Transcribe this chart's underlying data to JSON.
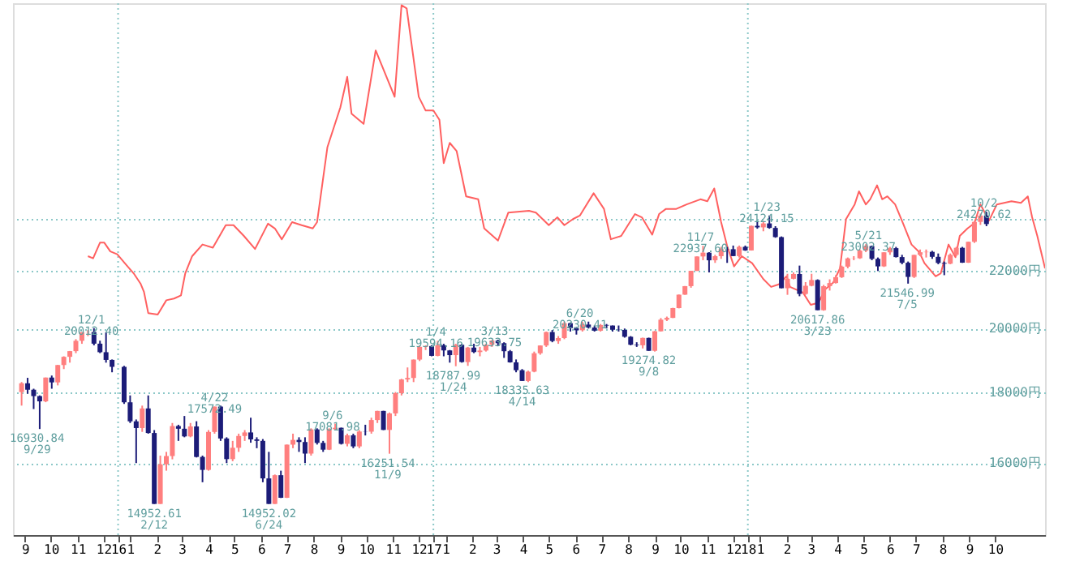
{
  "chart_data": {
    "type": "candlestick",
    "log": true,
    "grid": "y",
    "xlim": [
      "2015-09-01",
      "2018-12-12"
    ],
    "ylim": [
      14200,
      34300
    ],
    "yticks": [
      {
        "value": 16000,
        "label": "16000円"
      },
      {
        "value": 18000,
        "label": "18000円"
      },
      {
        "value": 20000,
        "label": "20000円"
      },
      {
        "value": 22000,
        "label": "22000円"
      },
      {
        "value": 24000,
        "label": null
      }
    ],
    "xticks": [
      {
        "value": "2015-09-15",
        "label": "9"
      },
      {
        "value": "2015-10-15",
        "label": "10"
      },
      {
        "value": "2015-11-15",
        "label": "11"
      },
      {
        "value": "2015-12-15",
        "label": "12"
      },
      {
        "value": "2016-01-01",
        "label": "16"
      },
      {
        "value": "2016-01-15",
        "label": "1"
      },
      {
        "value": "2016-02-15",
        "label": "2"
      },
      {
        "value": "2016-03-15",
        "label": "3"
      },
      {
        "value": "2016-04-15",
        "label": "4"
      },
      {
        "value": "2016-05-15",
        "label": "5"
      },
      {
        "value": "2016-06-15",
        "label": "6"
      },
      {
        "value": "2016-07-15",
        "label": "7"
      },
      {
        "value": "2016-08-15",
        "label": "8"
      },
      {
        "value": "2016-09-15",
        "label": "9"
      },
      {
        "value": "2016-10-15",
        "label": "10"
      },
      {
        "value": "2016-11-15",
        "label": "11"
      },
      {
        "value": "2016-12-15",
        "label": "12"
      },
      {
        "value": "2017-01-01",
        "label": "17"
      },
      {
        "value": "2017-01-15",
        "label": "1"
      },
      {
        "value": "2017-02-15",
        "label": "2"
      },
      {
        "value": "2017-03-15",
        "label": "3"
      },
      {
        "value": "2017-04-15",
        "label": "4"
      },
      {
        "value": "2017-05-15",
        "label": "5"
      },
      {
        "value": "2017-06-15",
        "label": "6"
      },
      {
        "value": "2017-07-15",
        "label": "7"
      },
      {
        "value": "2017-08-15",
        "label": "8"
      },
      {
        "value": "2017-09-15",
        "label": "9"
      },
      {
        "value": "2017-10-15",
        "label": "10"
      },
      {
        "value": "2017-11-15",
        "label": "11"
      },
      {
        "value": "2017-12-15",
        "label": "12"
      },
      {
        "value": "2018-01-01",
        "label": "18"
      },
      {
        "value": "2018-01-15",
        "label": "1"
      },
      {
        "value": "2018-02-15",
        "label": "2"
      },
      {
        "value": "2018-03-15",
        "label": "3"
      },
      {
        "value": "2018-04-15",
        "label": "4"
      },
      {
        "value": "2018-05-15",
        "label": "5"
      },
      {
        "value": "2018-06-15",
        "label": "6"
      },
      {
        "value": "2018-07-15",
        "label": "7"
      },
      {
        "value": "2018-08-15",
        "label": "8"
      },
      {
        "value": "2018-09-15",
        "label": "9"
      },
      {
        "value": "2018-10-15",
        "label": "10"
      }
    ],
    "ref_lines": [
      {
        "axis": "x",
        "value": "2016-01-01"
      },
      {
        "axis": "x",
        "value": "2017-01-01"
      },
      {
        "axis": "x",
        "value": "2018-01-01"
      }
    ],
    "series": [
      {
        "type": "line",
        "color": "#ff6060",
        "x": [
          "2015-11-27",
          "2015-12-03",
          "2015-12-11",
          "2015-12-16",
          "2015-12-23",
          "2015-12-31",
          "2016-01-11",
          "2016-01-19",
          "2016-01-27",
          "2016-01-31",
          "2016-02-05",
          "2016-02-16",
          "2016-02-26",
          "2016-03-06",
          "2016-03-14",
          "2016-03-19",
          "2016-03-27",
          "2016-04-08",
          "2016-04-20",
          "2016-05-05",
          "2016-05-14",
          "2016-05-26",
          "2016-06-08",
          "2016-06-23",
          "2016-07-01",
          "2016-07-09",
          "2016-07-21",
          "2016-08-01",
          "2016-08-14",
          "2016-08-19",
          "2016-08-31",
          "2016-09-15",
          "2016-09-23",
          "2016-09-28",
          "2016-10-12",
          "2016-10-26",
          "2016-11-17",
          "2016-11-25",
          "2016-12-01",
          "2016-12-15",
          "2016-12-23",
          "2017-01-01",
          "2017-01-08",
          "2017-01-13",
          "2017-01-20",
          "2017-01-28",
          "2017-02-08",
          "2017-02-22",
          "2017-03-01",
          "2017-03-17",
          "2017-03-29",
          "2017-04-22",
          "2017-04-30",
          "2017-05-15",
          "2017-05-25",
          "2017-06-02",
          "2017-06-12",
          "2017-06-20",
          "2017-07-06",
          "2017-07-18",
          "2017-07-26",
          "2017-08-07",
          "2017-08-23",
          "2017-08-31",
          "2017-09-12",
          "2017-09-20",
          "2017-09-28",
          "2017-10-10",
          "2017-10-22",
          "2017-11-07",
          "2017-11-15",
          "2017-11-23",
          "2017-12-01",
          "2017-12-08",
          "2017-12-16",
          "2017-12-25",
          "2018-01-06",
          "2018-01-19",
          "2018-01-28",
          "2018-02-06",
          "2018-02-15",
          "2018-02-19",
          "2018-03-06",
          "2018-03-15",
          "2018-03-24",
          "2018-04-01",
          "2018-04-10",
          "2018-04-18",
          "2018-04-25",
          "2018-05-05",
          "2018-05-10",
          "2018-05-18",
          "2018-05-23",
          "2018-05-31",
          "2018-06-06",
          "2018-06-12",
          "2018-06-21",
          "2018-06-30",
          "2018-07-10",
          "2018-07-19",
          "2018-07-25",
          "2018-08-07",
          "2018-08-13",
          "2018-08-22",
          "2018-08-30",
          "2018-09-04",
          "2018-09-13",
          "2018-09-21",
          "2018-09-28",
          "2018-10-08",
          "2018-10-17",
          "2018-11-03",
          "2018-11-14",
          "2018-11-22",
          "2018-11-27",
          "2018-12-03",
          "2018-12-12"
        ],
        "values": [
          22550,
          22470,
          23060,
          23060,
          22730,
          22620,
          22210,
          21920,
          21550,
          21260,
          20520,
          20470,
          20960,
          21020,
          21130,
          21920,
          22550,
          22990,
          22870,
          23740,
          23740,
          23320,
          22820,
          23800,
          23610,
          23190,
          23860,
          23740,
          23610,
          23860,
          27020,
          28860,
          30360,
          28560,
          28080,
          31720,
          29370,
          34190,
          34010,
          29370,
          28710,
          28710,
          28270,
          26310,
          27210,
          26840,
          24900,
          24780,
          23610,
          23140,
          24240,
          24310,
          24240,
          23740,
          24050,
          23740,
          23980,
          24120,
          25030,
          24390,
          23190,
          23320,
          24180,
          24050,
          23370,
          24180,
          24390,
          24390,
          24570,
          24780,
          24700,
          25230,
          23860,
          22930,
          22170,
          22550,
          22290,
          21710,
          21430,
          21520,
          21810,
          21430,
          21230,
          20800,
          20870,
          21350,
          21580,
          22100,
          23980,
          24570,
          25110,
          24570,
          24780,
          25360,
          24780,
          24900,
          24570,
          23820,
          22990,
          22700,
          22290,
          21810,
          21920,
          22990,
          22510,
          23320,
          23610,
          23820,
          24570,
          23920,
          24570,
          24700,
          24630,
          24900,
          24050,
          23320,
          22100
        ]
      },
      {
        "color": "#ff7f7f",
        "x": [
          "2015-09-11",
          "2015-10-09",
          "2015-10-23",
          "2015-10-30",
          "2015-11-06",
          "2015-11-13",
          "2015-11-20",
          "2015-11-27",
          "2016-01-29",
          "2016-02-19",
          "2016-02-26",
          "2016-03-04",
          "2016-03-25",
          "2016-04-15",
          "2016-04-22",
          "2016-05-13",
          "2016-05-20",
          "2016-05-27",
          "2016-07-01",
          "2016-07-15",
          "2016-07-22",
          "2016-08-12",
          "2016-09-02",
          "2016-09-09",
          "2016-09-23",
          "2016-10-07",
          "2016-10-21",
          "2016-10-28",
          "2016-11-11",
          "2016-11-18",
          "2016-11-25",
          "2016-12-02",
          "2016-12-09",
          "2016-12-16",
          "2016-12-23",
          "2017-01-06",
          "2017-01-27",
          "2017-02-10",
          "2017-02-24",
          "2017-03-03",
          "2017-03-10",
          "2017-04-21",
          "2017-04-28",
          "2017-05-05",
          "2017-05-12",
          "2017-05-26",
          "2017-06-02",
          "2017-06-23",
          "2017-07-14",
          "2017-09-01",
          "2017-09-15",
          "2017-09-22",
          "2017-09-29",
          "2017-10-06",
          "2017-10-13",
          "2017-10-20",
          "2017-10-27",
          "2017-11-03",
          "2017-11-10",
          "2017-11-24",
          "2017-12-01",
          "2017-12-22",
          "2018-01-05",
          "2018-01-19",
          "2018-02-16",
          "2018-02-23",
          "2018-03-09",
          "2018-03-16",
          "2018-03-30",
          "2018-04-06",
          "2018-04-13",
          "2018-04-20",
          "2018-04-27",
          "2018-05-04",
          "2018-05-11",
          "2018-05-18",
          "2018-06-08",
          "2018-06-15",
          "2018-07-13",
          "2018-07-20",
          "2018-07-27",
          "2018-08-24",
          "2018-08-31",
          "2018-09-14",
          "2018-09-21",
          "2018-09-28"
        ],
        "ohlc": [
          [
            18000,
            18300,
            17600,
            18264
          ],
          [
            17725,
            18440,
            17700,
            18438
          ],
          [
            18291,
            18830,
            18200,
            18825
          ],
          [
            18825,
            19100,
            18700,
            19083
          ],
          [
            19083,
            19270,
            18900,
            19265
          ],
          [
            19265,
            19650,
            19200,
            19597
          ],
          [
            19597,
            19880,
            19500,
            19879
          ],
          [
            19879,
            19950,
            19750,
            19883
          ],
          [
            16958,
            17600,
            16850,
            17518
          ],
          [
            14952,
            16200,
            14952,
            15967
          ],
          [
            15967,
            16300,
            15800,
            16188
          ],
          [
            16188,
            17100,
            16100,
            17014
          ],
          [
            16724,
            17100,
            16700,
            17002
          ],
          [
            15821,
            16900,
            15800,
            16848
          ],
          [
            16848,
            17572,
            16800,
            17572
          ],
          [
            16106,
            16600,
            16050,
            16412
          ],
          [
            16412,
            16800,
            16300,
            16736
          ],
          [
            16736,
            16900,
            16600,
            16834
          ],
          [
            14952,
            15700,
            14952,
            15682
          ],
          [
            15106,
            16500,
            15100,
            16497
          ],
          [
            16497,
            16800,
            16400,
            16627
          ],
          [
            16254,
            16950,
            16200,
            16919
          ],
          [
            16360,
            16950,
            16350,
            16925
          ],
          [
            16925,
            17081,
            16900,
            16965
          ],
          [
            16519,
            16800,
            16450,
            16754
          ],
          [
            16449,
            16900,
            16400,
            16860
          ],
          [
            16856,
            17250,
            16800,
            17184
          ],
          [
            17184,
            17450,
            17100,
            17446
          ],
          [
            16905,
            17400,
            16251,
            17374
          ],
          [
            17374,
            18000,
            17300,
            17967
          ],
          [
            17967,
            18400,
            17900,
            18381
          ],
          [
            18381,
            18750,
            18300,
            18426
          ],
          [
            18426,
            19000,
            18300,
            18996
          ],
          [
            18996,
            19450,
            18950,
            19401
          ],
          [
            19401,
            19450,
            19300,
            19427
          ],
          [
            19114,
            19594,
            19100,
            19454
          ],
          [
            19137,
            19500,
            18788,
            19467
          ],
          [
            18918,
            19400,
            18800,
            19378
          ],
          [
            19234,
            19400,
            19100,
            19283
          ],
          [
            19283,
            19500,
            19250,
            19469
          ],
          [
            19469,
            19620,
            19400,
            19604
          ],
          [
            18335,
            18650,
            18300,
            18620
          ],
          [
            18620,
            19250,
            18600,
            19196
          ],
          [
            19196,
            19450,
            19150,
            19445
          ],
          [
            19445,
            19900,
            19400,
            19883
          ],
          [
            19590,
            19750,
            19500,
            19686
          ],
          [
            19686,
            20230,
            19650,
            20177
          ],
          [
            19943,
            20230,
            19900,
            20132
          ],
          [
            19929,
            20150,
            19900,
            20118
          ],
          [
            19452,
            19700,
            19350,
            19691
          ],
          [
            19274,
            19920,
            19250,
            19909
          ],
          [
            19909,
            20350,
            19900,
            20296
          ],
          [
            20296,
            20400,
            20250,
            20356
          ],
          [
            20356,
            20700,
            20350,
            20690
          ],
          [
            20690,
            21160,
            20680,
            21155
          ],
          [
            21155,
            21460,
            21150,
            21457
          ],
          [
            21457,
            22010,
            21400,
            22008
          ],
          [
            22008,
            22540,
            22000,
            22539
          ],
          [
            22539,
            22937,
            22400,
            22681
          ],
          [
            22396,
            22600,
            22300,
            22550
          ],
          [
            22550,
            22900,
            22450,
            22819
          ],
          [
            22553,
            22950,
            22500,
            22902
          ],
          [
            22764,
            23720,
            22760,
            23714
          ],
          [
            23653,
            23900,
            23500,
            23808
          ],
          [
            21382,
            21900,
            21150,
            21720
          ],
          [
            21720,
            21950,
            21700,
            21892
          ],
          [
            21181,
            21600,
            21150,
            21469
          ],
          [
            21469,
            21900,
            21450,
            21676
          ],
          [
            20617,
            21500,
            20600,
            21454
          ],
          [
            21454,
            21700,
            21300,
            21567
          ],
          [
            21567,
            21850,
            21550,
            21778
          ],
          [
            21778,
            22200,
            21750,
            22162
          ],
          [
            22162,
            22500,
            22100,
            22467
          ],
          [
            22467,
            22550,
            22400,
            22472
          ],
          [
            22472,
            22800,
            22450,
            22758
          ],
          [
            22758,
            23002,
            22700,
            22930
          ],
          [
            22171,
            22700,
            22150,
            22694
          ],
          [
            22694,
            22900,
            22600,
            22851
          ],
          [
            21788,
            22600,
            21750,
            22597
          ],
          [
            22597,
            22800,
            22550,
            22697
          ],
          [
            22697,
            22800,
            22500,
            22712
          ],
          [
            22270,
            22650,
            22250,
            22601
          ],
          [
            22601,
            22900,
            22550,
            22865
          ],
          [
            22307,
            23100,
            22300,
            23094
          ],
          [
            23094,
            23900,
            23050,
            23869
          ],
          [
            23869,
            24200,
            23750,
            24120
          ]
        ]
      },
      {
        "color": "#1c1c78",
        "x": [
          "2015-09-18",
          "2015-09-25",
          "2015-10-02",
          "2015-10-16",
          "2015-12-04",
          "2015-12-11",
          "2015-12-18",
          "2015-12-25",
          "2016-01-08",
          "2016-01-15",
          "2016-01-22",
          "2016-02-05",
          "2016-02-12",
          "2016-03-11",
          "2016-03-18",
          "2016-04-01",
          "2016-04-08",
          "2016-04-29",
          "2016-05-06",
          "2016-06-03",
          "2016-06-10",
          "2016-06-17",
          "2016-06-24",
          "2016-07-08",
          "2016-07-29",
          "2016-08-05",
          "2016-08-19",
          "2016-08-26",
          "2016-09-16",
          "2016-09-30",
          "2016-10-14",
          "2016-11-04",
          "2016-12-30",
          "2017-01-13",
          "2017-01-20",
          "2017-02-03",
          "2017-02-17",
          "2017-03-17",
          "2017-03-24",
          "2017-03-31",
          "2017-04-07",
          "2017-04-14",
          "2017-05-19",
          "2017-06-09",
          "2017-06-16",
          "2017-06-30",
          "2017-07-07",
          "2017-07-21",
          "2017-07-28",
          "2017-08-04",
          "2017-08-11",
          "2017-08-18",
          "2017-08-25",
          "2017-09-08",
          "2017-11-17",
          "2017-12-08",
          "2017-12-15",
          "2017-12-29",
          "2018-01-12",
          "2018-01-26",
          "2018-02-02",
          "2018-02-09",
          "2018-03-02",
          "2018-03-23",
          "2018-05-25",
          "2018-06-01",
          "2018-06-22",
          "2018-06-29",
          "2018-07-06",
          "2018-08-03",
          "2018-08-10",
          "2018-08-17",
          "2018-09-07",
          "2018-10-05"
        ],
        "ohlc": [
          [
            18264,
            18430,
            17950,
            18070
          ],
          [
            18070,
            18100,
            17500,
            17880
          ],
          [
            17880,
            17900,
            16930,
            17725
          ],
          [
            18438,
            18500,
            18100,
            18291
          ],
          [
            19883,
            20012,
            19450,
            19504
          ],
          [
            19504,
            19600,
            19200,
            19230
          ],
          [
            19230,
            19870,
            18900,
            18986
          ],
          [
            18986,
            19000,
            18600,
            18769
          ],
          [
            18769,
            18800,
            17650,
            17697
          ],
          [
            17697,
            17900,
            17100,
            17147
          ],
          [
            17147,
            17200,
            16000,
            16958
          ],
          [
            17518,
            17900,
            16800,
            16819
          ],
          [
            16819,
            16900,
            14952,
            14952
          ],
          [
            17014,
            17050,
            16600,
            16938
          ],
          [
            16938,
            17300,
            16700,
            16724
          ],
          [
            17002,
            17150,
            16150,
            16164
          ],
          [
            16164,
            16200,
            15500,
            15821
          ],
          [
            17572,
            17600,
            16600,
            16666
          ],
          [
            16666,
            16700,
            16000,
            16106
          ],
          [
            16834,
            17250,
            16550,
            16642
          ],
          [
            16642,
            16700,
            16400,
            16601
          ],
          [
            16601,
            16650,
            15500,
            15599
          ],
          [
            15599,
            16300,
            14952,
            14952
          ],
          [
            15682,
            15800,
            15100,
            15106
          ],
          [
            16627,
            16700,
            16300,
            16569
          ],
          [
            16569,
            16700,
            16000,
            16254
          ],
          [
            16919,
            16950,
            16500,
            16545
          ],
          [
            16545,
            16600,
            16300,
            16360
          ],
          [
            16965,
            16970,
            16500,
            16519
          ],
          [
            16754,
            16800,
            16400,
            16449
          ],
          [
            16860,
            17050,
            16750,
            16856
          ],
          [
            17446,
            17450,
            16900,
            16905
          ],
          [
            19427,
            19450,
            19100,
            19114
          ],
          [
            19454,
            19500,
            19100,
            19287
          ],
          [
            19287,
            19300,
            18900,
            19137
          ],
          [
            19467,
            19500,
            18900,
            18918
          ],
          [
            19378,
            19500,
            19200,
            19234
          ],
          [
            19604,
            19633,
            19450,
            19521
          ],
          [
            19521,
            19550,
            19050,
            19262
          ],
          [
            19262,
            19300,
            18900,
            18909
          ],
          [
            18909,
            19000,
            18600,
            18664
          ],
          [
            18664,
            18700,
            18335,
            18335
          ],
          [
            19883,
            19950,
            19550,
            19590
          ],
          [
            20177,
            20200,
            19900,
            20013
          ],
          [
            20013,
            20050,
            19800,
            19943
          ],
          [
            20132,
            20230,
            20000,
            20033
          ],
          [
            20033,
            20100,
            19900,
            19929
          ],
          [
            20118,
            20150,
            20000,
            20099
          ],
          [
            20099,
            20100,
            19900,
            19959
          ],
          [
            19959,
            20100,
            19900,
            19952
          ],
          [
            19952,
            20000,
            19700,
            19729
          ],
          [
            19729,
            19750,
            19450,
            19470
          ],
          [
            19470,
            19550,
            19400,
            19452
          ],
          [
            19691,
            19700,
            19274,
            19274
          ],
          [
            22681,
            22700,
            21950,
            22396
          ],
          [
            22819,
            22900,
            22300,
            22811
          ],
          [
            22811,
            22950,
            22550,
            22553
          ],
          [
            22902,
            22950,
            22750,
            22764
          ],
          [
            23714,
            23900,
            23600,
            23653
          ],
          [
            23808,
            24124,
            23600,
            23631
          ],
          [
            23631,
            23700,
            23250,
            23274
          ],
          [
            23274,
            23300,
            21380,
            21382
          ],
          [
            21892,
            22200,
            21100,
            21181
          ],
          [
            21676,
            21700,
            20617,
            20617
          ],
          [
            22930,
            22950,
            22400,
            22450
          ],
          [
            22450,
            22500,
            22000,
            22171
          ],
          [
            22851,
            22900,
            22500,
            22516
          ],
          [
            22516,
            22600,
            22250,
            22304
          ],
          [
            22304,
            22350,
            21546,
            21788
          ],
          [
            22712,
            22750,
            22450,
            22525
          ],
          [
            22525,
            22650,
            22250,
            22298
          ],
          [
            22298,
            22350,
            21850,
            22270
          ],
          [
            22865,
            22900,
            22300,
            22307
          ],
          [
            24120,
            24270,
            23700,
            23783
          ]
        ]
      }
    ],
    "annotations": [
      {
        "text": "16930.84\n9/29",
        "x": "2015-09-29",
        "y": 16930.84
      },
      {
        "text": "12/1\n20012.40",
        "x": "2015-12-01",
        "y": 20012.4
      },
      {
        "text": "14952.61\n2/12",
        "x": "2016-02-12",
        "y": 14952.61
      },
      {
        "text": "4/22\n17572.49",
        "x": "2016-04-22",
        "y": 17572.49
      },
      {
        "text": "14952.02\n6/24",
        "x": "2016-06-24",
        "y": 14952.02
      },
      {
        "text": "9/6\n17081.98",
        "x": "2016-09-06",
        "y": 17081.98
      },
      {
        "text": "16251.54\n11/9",
        "x": "2016-11-09",
        "y": 16251.54
      },
      {
        "text": "1/4\n19594.16",
        "x": "2017-01-04",
        "y": 19594.16
      },
      {
        "text": "18787.99\n1/24",
        "x": "2017-01-24",
        "y": 18787.99
      },
      {
        "text": "3/13\n19633.75",
        "x": "2017-03-13",
        "y": 19633.75
      },
      {
        "text": "18335.63\n4/14",
        "x": "2017-04-14",
        "y": 18335.63
      },
      {
        "text": "6/20\n20230.41",
        "x": "2017-06-20",
        "y": 20230.41
      },
      {
        "text": "19274.82\n9/8",
        "x": "2017-09-08",
        "y": 19274.82
      },
      {
        "text": "11/7\n22937.60",
        "x": "2017-11-07",
        "y": 22937.6
      },
      {
        "text": "1/23\n24124.15",
        "x": "2018-01-23",
        "y": 24124.15
      },
      {
        "text": "20617.86\n3/23",
        "x": "2018-03-23",
        "y": 20617.86
      },
      {
        "text": "5/21\n23002.37",
        "x": "2018-05-21",
        "y": 23002.37
      },
      {
        "text": "21546.99\n7/5",
        "x": "2018-07-05",
        "y": 21546.99
      },
      {
        "text": "10/2\n24270.62",
        "x": "2018-10-02",
        "y": 24270.62
      }
    ]
  }
}
